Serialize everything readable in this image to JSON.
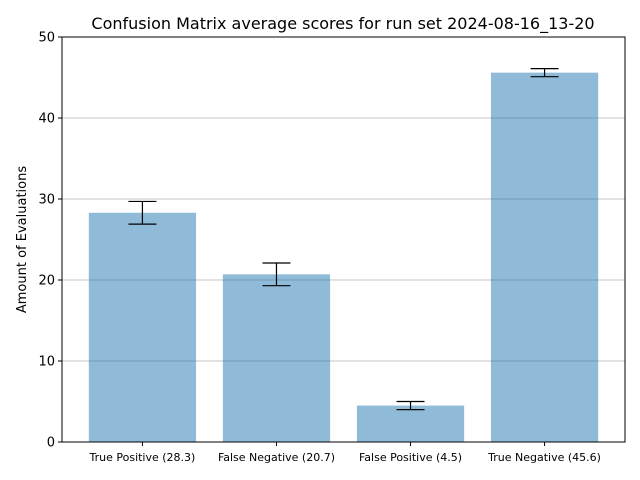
{
  "chart_data": {
    "type": "bar",
    "title": "Confusion Matrix average scores for run set 2024-08-16_13-20",
    "xlabel": "",
    "ylabel": "Amount of Evaluations",
    "categories": [
      "True Positive (28.3)",
      "False Negative (20.7)",
      "False Positive (4.5)",
      "True Negative (45.6)"
    ],
    "values": [
      28.3,
      20.7,
      4.5,
      45.6
    ],
    "error": [
      1.4,
      1.4,
      0.5,
      0.5
    ],
    "ylim": [
      0,
      50
    ],
    "yticks": [
      0,
      10,
      20,
      30,
      40,
      50
    ],
    "grid": "horizontal",
    "bar_color": "#1f77b4"
  }
}
